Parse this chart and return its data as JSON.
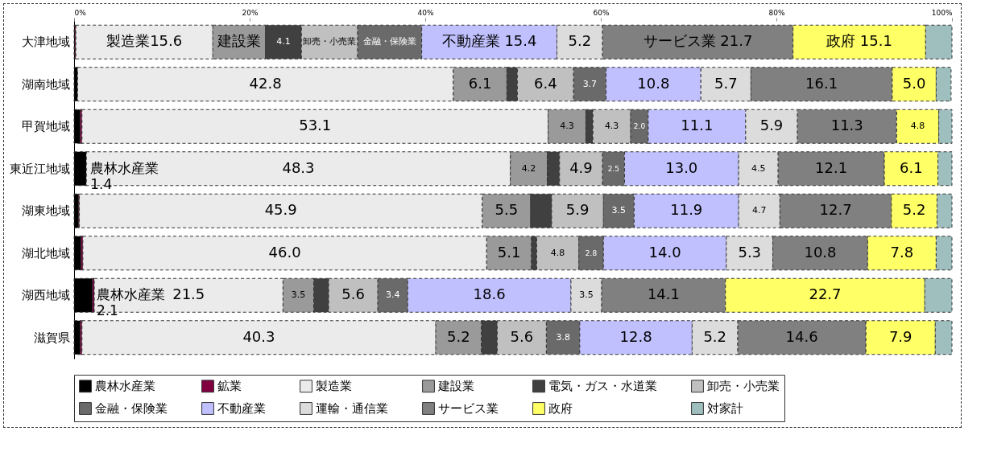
{
  "chart_data": {
    "type": "bar",
    "orientation": "horizontal",
    "stacked": true,
    "legend": "bottom",
    "grid": false,
    "categories": [
      "大津地域",
      "湖南地域",
      "甲賀地域",
      "東近江地域",
      "湖東地域",
      "湖北地域",
      "湖西地域",
      "滋賀県"
    ],
    "xlim": [
      0,
      100
    ],
    "xticks": [
      {
        "value": 0,
        "label": "0%"
      },
      {
        "value": 20,
        "label": "20%"
      },
      {
        "value": 40,
        "label": "40%"
      },
      {
        "value": 60,
        "label": "60%"
      },
      {
        "value": 80,
        "label": "80%"
      },
      {
        "value": 100,
        "label": "100%"
      }
    ],
    "series": [
      {
        "name": "農林水産業",
        "color": "#000000",
        "values": [
          0.1,
          0.4,
          0.7,
          1.4,
          0.5,
          0.8,
          2.1,
          0.7
        ],
        "value_labels": [
          null,
          null,
          null,
          "農林水産業 1.4",
          null,
          null,
          "農林水産業 2.1",
          null
        ]
      },
      {
        "name": "鉱業",
        "color": "#800040",
        "values": [
          0.1,
          null,
          0.2,
          null,
          0.1,
          0.2,
          0.2,
          0.2
        ],
        "value_labels": [
          null,
          null,
          null,
          null,
          null,
          null,
          null,
          null
        ]
      },
      {
        "name": "製造業",
        "color": "#ebebeb",
        "values": [
          15.6,
          42.8,
          53.1,
          48.3,
          45.9,
          46.0,
          21.5,
          40.3
        ],
        "value_labels": [
          "製造業15.6",
          "42.8",
          "53.1",
          "48.3",
          "45.9",
          "46.0",
          "21.5",
          "40.3"
        ]
      },
      {
        "name": "建設業",
        "color": "#9a9a9a",
        "values": [
          6.0,
          6.1,
          4.3,
          4.2,
          5.5,
          5.1,
          3.5,
          5.2
        ],
        "value_labels": [
          "建設業",
          "6.1",
          "4.3",
          "4.2",
          "5.5",
          "5.1",
          "3.5",
          "5.2"
        ]
      },
      {
        "name": "電気・ガス・水道業",
        "color": "#404040",
        "values": [
          4.1,
          1.2,
          0.8,
          1.4,
          2.4,
          0.6,
          1.7,
          1.8
        ],
        "value_labels": [
          "4.1",
          null,
          null,
          null,
          null,
          null,
          null,
          null
        ]
      },
      {
        "name": "卸売・小売業",
        "color": "#c0c0c0",
        "values": [
          6.4,
          6.4,
          4.3,
          4.9,
          5.9,
          4.8,
          5.6,
          5.6
        ],
        "value_labels": [
          "卸売・小売業",
          "6.4",
          "4.3",
          "4.9",
          "5.9",
          "4.8",
          "5.6",
          "5.6"
        ]
      },
      {
        "name": "金融・保険業",
        "color": "#6a6a6a",
        "values": [
          7.3,
          3.7,
          2.0,
          2.5,
          3.5,
          2.8,
          3.4,
          3.8
        ],
        "value_labels": [
          "金融・保険業",
          "3.7",
          "2.0",
          "2.5",
          "3.5",
          "2.8",
          "3.4",
          "3.8"
        ]
      },
      {
        "name": "不動産業",
        "color": "#c0c0ff",
        "values": [
          15.4,
          10.8,
          11.1,
          13.0,
          11.9,
          14.0,
          18.6,
          12.8
        ],
        "value_labels": [
          "不動産業 15.4",
          "10.8",
          "11.1",
          "13.0",
          "11.9",
          "14.0",
          "18.6",
          "12.8"
        ]
      },
      {
        "name": "運輸・通信業",
        "color": "#dcdcdc",
        "values": [
          5.2,
          5.7,
          5.9,
          4.5,
          4.7,
          5.3,
          3.5,
          5.2
        ],
        "value_labels": [
          "5.2",
          "5.7",
          "5.9",
          "4.5",
          "4.7",
          "5.3",
          "3.5",
          "5.2"
        ]
      },
      {
        "name": "サービス業",
        "color": "#808080",
        "values": [
          21.7,
          16.1,
          11.3,
          12.1,
          12.7,
          10.8,
          14.1,
          14.6
        ],
        "value_labels": [
          "サービス業 21.7",
          "16.1",
          "11.3",
          "12.1",
          "12.7",
          "10.8",
          "14.1",
          "14.6"
        ]
      },
      {
        "name": "政府",
        "color": "#ffff66",
        "values": [
          15.1,
          5.0,
          4.8,
          6.1,
          5.2,
          7.8,
          22.7,
          7.9
        ],
        "value_labels": [
          "政府 15.1",
          "5.0",
          "4.8",
          "6.1",
          "5.2",
          "7.8",
          "22.7",
          "7.9"
        ]
      },
      {
        "name": "対家計",
        "color": "#9fbfbf",
        "values": [
          3.0,
          1.7,
          1.5,
          1.6,
          1.7,
          1.8,
          3.1,
          1.9
        ],
        "value_labels": [
          null,
          null,
          null,
          null,
          null,
          null,
          null,
          null
        ]
      }
    ]
  }
}
